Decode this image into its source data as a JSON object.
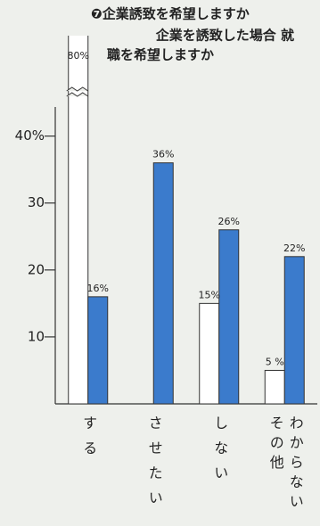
{
  "chart_data": {
    "type": "bar",
    "title": [
      "❼企業誘致を希望しますか",
      "企業を誘致した場合 就",
      "職を希望しますか"
    ],
    "categories": [
      "する",
      "させたい",
      "しない",
      null
    ],
    "annotations": [
      "その他",
      "わからない"
    ],
    "series": [
      {
        "color": "#ffffff",
        "values": [
          80,
          null,
          15,
          5
        ],
        "value_labels": [
          "80%",
          null,
          "15%",
          "5 %"
        ]
      },
      {
        "color": "#3b7bcc",
        "values": [
          16,
          36,
          26,
          22
        ],
        "value_labels": [
          "16%",
          "36%",
          "26%",
          "22%"
        ]
      }
    ],
    "ylim": [
      0,
      55
    ],
    "yticks": [
      10,
      20,
      30,
      {
        "value": 40,
        "label": "40%"
      }
    ]
  }
}
